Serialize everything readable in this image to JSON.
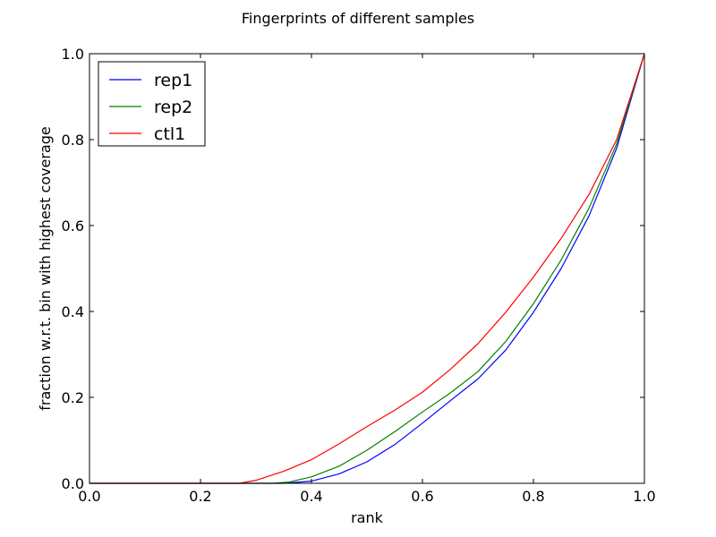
{
  "chart_data": {
    "type": "line",
    "title": "Fingerprints of different samples",
    "xlabel": "rank",
    "ylabel": "fraction w.r.t. bin with highest coverage",
    "xlim": [
      0.0,
      1.0
    ],
    "ylim": [
      0.0,
      1.0
    ],
    "xticks": [
      "0.0",
      "0.2",
      "0.4",
      "0.6",
      "0.8",
      "1.0"
    ],
    "yticks": [
      "0.0",
      "0.2",
      "0.4",
      "0.6",
      "0.8",
      "1.0"
    ],
    "grid": false,
    "legend_position": "top-left",
    "series": [
      {
        "name": "rep1",
        "color": "#0000ff",
        "x": [
          0.0,
          0.3,
          0.35,
          0.4,
          0.45,
          0.5,
          0.55,
          0.6,
          0.65,
          0.7,
          0.75,
          0.8,
          0.85,
          0.9,
          0.95,
          1.0
        ],
        "y": [
          0.0,
          0.0,
          0.0,
          0.005,
          0.022,
          0.05,
          0.09,
          0.14,
          0.192,
          0.243,
          0.31,
          0.398,
          0.5,
          0.622,
          0.78,
          1.0
        ]
      },
      {
        "name": "rep2",
        "color": "#008000",
        "x": [
          0.0,
          0.3,
          0.33,
          0.36,
          0.4,
          0.45,
          0.5,
          0.55,
          0.6,
          0.65,
          0.7,
          0.75,
          0.8,
          0.85,
          0.9,
          0.95,
          1.0
        ],
        "y": [
          0.0,
          0.0,
          0.0,
          0.003,
          0.015,
          0.04,
          0.077,
          0.12,
          0.166,
          0.21,
          0.26,
          0.33,
          0.418,
          0.52,
          0.64,
          0.79,
          1.0
        ]
      },
      {
        "name": "ctl1",
        "color": "#ff0000",
        "x": [
          0.0,
          0.25,
          0.27,
          0.3,
          0.35,
          0.4,
          0.45,
          0.5,
          0.55,
          0.6,
          0.65,
          0.7,
          0.75,
          0.8,
          0.85,
          0.9,
          0.95,
          1.0
        ],
        "y": [
          0.0,
          0.0,
          0.0,
          0.007,
          0.028,
          0.055,
          0.092,
          0.132,
          0.17,
          0.212,
          0.265,
          0.325,
          0.398,
          0.48,
          0.57,
          0.672,
          0.8,
          1.0
        ]
      }
    ]
  }
}
